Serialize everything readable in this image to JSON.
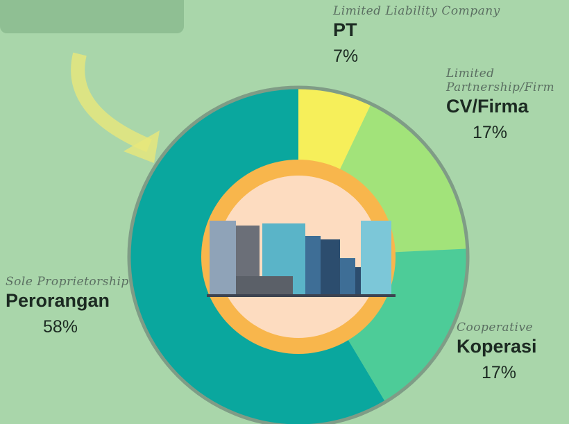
{
  "chart_data": {
    "type": "pie",
    "categories": [
      "PT",
      "CV/Firma",
      "Koperasi",
      "Perorangan"
    ],
    "descriptions": [
      "Limited Liability Company",
      "Limited Partnership/Firm",
      "Cooperative",
      "Sole Proprietorship"
    ],
    "values": [
      7,
      17,
      17,
      58
    ],
    "value_labels": [
      "7%",
      "17%",
      "17%",
      "58%"
    ],
    "colors": [
      "#f6ef5a",
      "#a2e37a",
      "#4dcc98",
      "#0aa79e"
    ]
  }
}
